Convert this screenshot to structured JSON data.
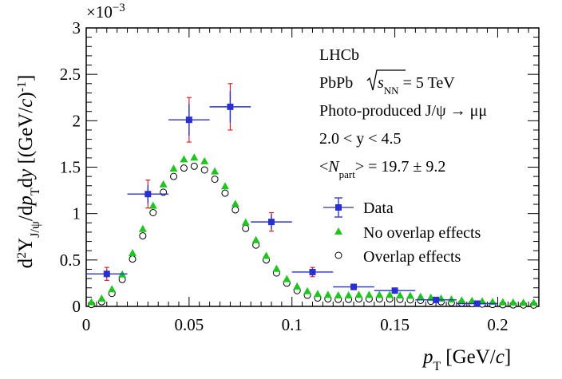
{
  "chart_data": {
    "type": "scatter",
    "xlim": [
      0,
      0.22
    ],
    "ylim": [
      0,
      3
    ],
    "x_ticks": [
      0,
      0.05,
      0.1,
      0.15,
      0.2
    ],
    "x_tick_labels": [
      "0",
      "0.05",
      "0.1",
      "0.15",
      "0.2"
    ],
    "y_ticks": [
      0,
      0.5,
      1,
      1.5,
      2,
      2.5,
      3
    ],
    "y_tick_labels": [
      "0",
      "0.5",
      "1",
      "1.5",
      "2",
      "2.5",
      "3"
    ],
    "y_multiplier": "×10",
    "y_multiplier_exp": "−3",
    "xlabel": {
      "main": "p",
      "sub": "T",
      "unit": "[GeV/c]"
    },
    "ylabel": "d²Y_J/ψ/dp_T dy [(GeV/c)^-1]",
    "grid": false,
    "annotations": {
      "experiment": "LHCb",
      "system_prefix": "PbPb",
      "system_s": "s",
      "system_sub": "NN",
      "system_suffix": " = 5 TeV",
      "process": "Photo-produced J/ψ → μμ",
      "rapidity": "2.0 < y < 4.5",
      "npart_open": "<",
      "npart_N": "N",
      "npart_sub": "part",
      "npart_rest": "> = 19.7 ± 9.2"
    },
    "legend": {
      "placement": "middle-right",
      "entries": [
        "Data",
        "No overlap effects",
        "Overlap effects"
      ]
    },
    "series": [
      {
        "name": "Data",
        "marker": "filled-square",
        "color": "#2a2fd0",
        "stat_color": "#2a2fd0",
        "syst_color": "#e0202a",
        "points": [
          {
            "x": 0.01,
            "xerr": 0.01,
            "y": 0.35,
            "err": 0.04,
            "syst": 0.07
          },
          {
            "x": 0.03,
            "xerr": 0.01,
            "y": 1.21,
            "err": 0.1,
            "syst": 0.15
          },
          {
            "x": 0.05,
            "xerr": 0.01,
            "y": 2.01,
            "err": 0.17,
            "syst": 0.24
          },
          {
            "x": 0.07,
            "xerr": 0.01,
            "y": 2.15,
            "err": 0.17,
            "syst": 0.25
          },
          {
            "x": 0.09,
            "xerr": 0.01,
            "y": 0.91,
            "err": 0.08,
            "syst": 0.1
          },
          {
            "x": 0.11,
            "xerr": 0.01,
            "y": 0.37,
            "err": 0.04,
            "syst": 0.05
          },
          {
            "x": 0.13,
            "xerr": 0.01,
            "y": 0.21,
            "err": 0.025,
            "syst": 0.03
          },
          {
            "x": 0.15,
            "xerr": 0.01,
            "y": 0.17,
            "err": 0.02,
            "syst": 0.025
          },
          {
            "x": 0.17,
            "xerr": 0.01,
            "y": 0.07,
            "err": 0.012,
            "syst": 0.016
          },
          {
            "x": 0.19,
            "xerr": 0.01,
            "y": 0.03,
            "err": 0.008,
            "syst": 0.01
          }
        ]
      },
      {
        "name": "No overlap effects",
        "marker": "filled-triangle",
        "color": "#1fc51f",
        "x": [
          0.0025,
          0.0075,
          0.0125,
          0.0175,
          0.0225,
          0.0275,
          0.0325,
          0.0375,
          0.0425,
          0.0475,
          0.0525,
          0.0575,
          0.0625,
          0.0675,
          0.0725,
          0.0775,
          0.0825,
          0.0875,
          0.0925,
          0.0975,
          0.1025,
          0.1075,
          0.1125,
          0.1175,
          0.1225,
          0.1275,
          0.1325,
          0.1375,
          0.1425,
          0.1475,
          0.1525,
          0.1575,
          0.1625,
          0.1675,
          0.1725,
          0.1775,
          0.1825,
          0.1875,
          0.1925,
          0.1975,
          0.2025,
          0.2075,
          0.2125,
          0.2175
        ],
        "y": [
          0.02,
          0.06,
          0.16,
          0.32,
          0.55,
          0.81,
          1.06,
          1.29,
          1.46,
          1.56,
          1.58,
          1.54,
          1.43,
          1.27,
          1.08,
          0.88,
          0.69,
          0.52,
          0.38,
          0.27,
          0.19,
          0.14,
          0.11,
          0.1,
          0.095,
          0.095,
          0.1,
          0.1,
          0.1,
          0.1,
          0.095,
          0.09,
          0.08,
          0.07,
          0.06,
          0.05,
          0.04,
          0.035,
          0.03,
          0.025,
          0.02,
          0.018,
          0.016,
          0.015
        ]
      },
      {
        "name": "Overlap effects",
        "marker": "open-circle",
        "color": "#000000",
        "x": [
          0.0025,
          0.0075,
          0.0125,
          0.0175,
          0.0225,
          0.0275,
          0.0325,
          0.0375,
          0.0425,
          0.0475,
          0.0525,
          0.0575,
          0.0625,
          0.0675,
          0.0725,
          0.0775,
          0.0825,
          0.0875,
          0.0925,
          0.0975,
          0.1025,
          0.1075,
          0.1125,
          0.1175,
          0.1225,
          0.1275,
          0.1325,
          0.1375,
          0.1425,
          0.1475,
          0.1525,
          0.1575,
          0.1625,
          0.1675,
          0.1725,
          0.1775,
          0.1825,
          0.1875,
          0.1925,
          0.1975,
          0.2025,
          0.2075,
          0.2125,
          0.2175
        ],
        "y": [
          0.02,
          0.05,
          0.14,
          0.29,
          0.51,
          0.76,
          1.01,
          1.23,
          1.4,
          1.49,
          1.51,
          1.47,
          1.37,
          1.22,
          1.04,
          0.84,
          0.66,
          0.5,
          0.36,
          0.25,
          0.17,
          0.12,
          0.09,
          0.08,
          0.075,
          0.075,
          0.08,
          0.08,
          0.08,
          0.08,
          0.075,
          0.07,
          0.065,
          0.055,
          0.05,
          0.04,
          0.035,
          0.03,
          0.025,
          0.02,
          0.018,
          0.016,
          0.015,
          0.014
        ]
      }
    ]
  }
}
